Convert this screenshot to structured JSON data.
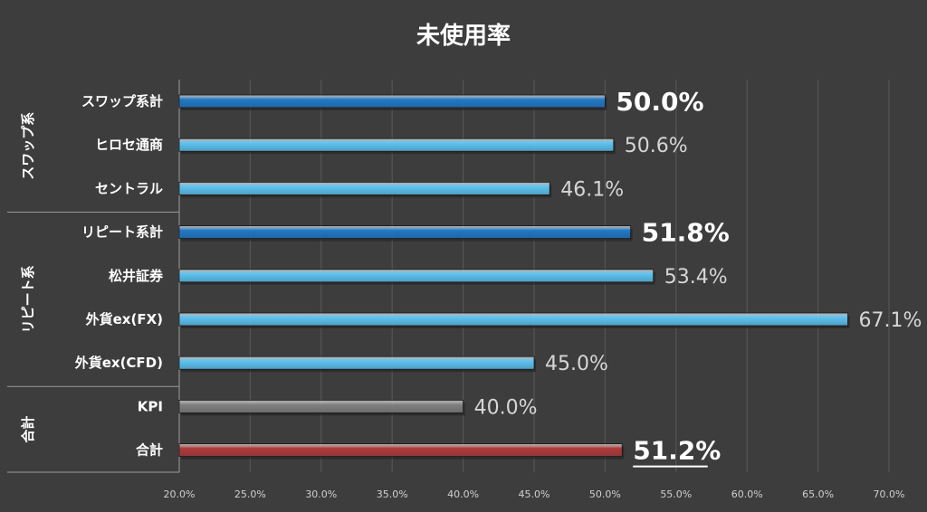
{
  "colors": {
    "background": "#3d3d3d",
    "grid": "#5a5a5a",
    "swap_total": "#1f79c8",
    "broker": "#5cc3f2",
    "kpi": "#808080",
    "total": "#b03a3a"
  },
  "chart_data": {
    "type": "bar",
    "orientation": "horizontal",
    "title": "未使用率",
    "xlabel": "",
    "ylabel": "",
    "xlim": [
      20.0,
      70.0
    ],
    "x_ticks": [
      "20.0%",
      "25.0%",
      "30.0%",
      "35.0%",
      "40.0%",
      "45.0%",
      "50.0%",
      "55.0%",
      "60.0%",
      "65.0%",
      "70.0%"
    ],
    "grid": true,
    "groups": [
      {
        "label": "スワップ系",
        "bars": [
          {
            "category": "スワップ系計",
            "value": 50.0,
            "label": "50.0%",
            "color_key": "swap_total",
            "emphasis": "bold"
          },
          {
            "category": "ヒロセ通商",
            "value": 50.6,
            "label": "50.6%",
            "color_key": "broker",
            "emphasis": "normal"
          },
          {
            "category": "セントラル",
            "value": 46.1,
            "label": "46.1%",
            "color_key": "broker",
            "emphasis": "normal"
          }
        ]
      },
      {
        "label": "リピート系",
        "bars": [
          {
            "category": "リピート系計",
            "value": 51.8,
            "label": "51.8%",
            "color_key": "swap_total",
            "emphasis": "bold"
          },
          {
            "category": "松井証券",
            "value": 53.4,
            "label": "53.4%",
            "color_key": "broker",
            "emphasis": "normal"
          },
          {
            "category": "外貨ex(FX)",
            "value": 67.1,
            "label": "67.1%",
            "color_key": "broker",
            "emphasis": "normal"
          },
          {
            "category": "外貨ex(CFD)",
            "value": 45.0,
            "label": "45.0%",
            "color_key": "broker",
            "emphasis": "normal"
          }
        ]
      },
      {
        "label": "合計",
        "bars": [
          {
            "category": "KPI",
            "value": 40.0,
            "label": "40.0%",
            "color_key": "kpi",
            "emphasis": "normal"
          },
          {
            "category": "合計",
            "value": 51.2,
            "label": "51.2%",
            "color_key": "total",
            "emphasis": "underline"
          }
        ]
      }
    ]
  }
}
